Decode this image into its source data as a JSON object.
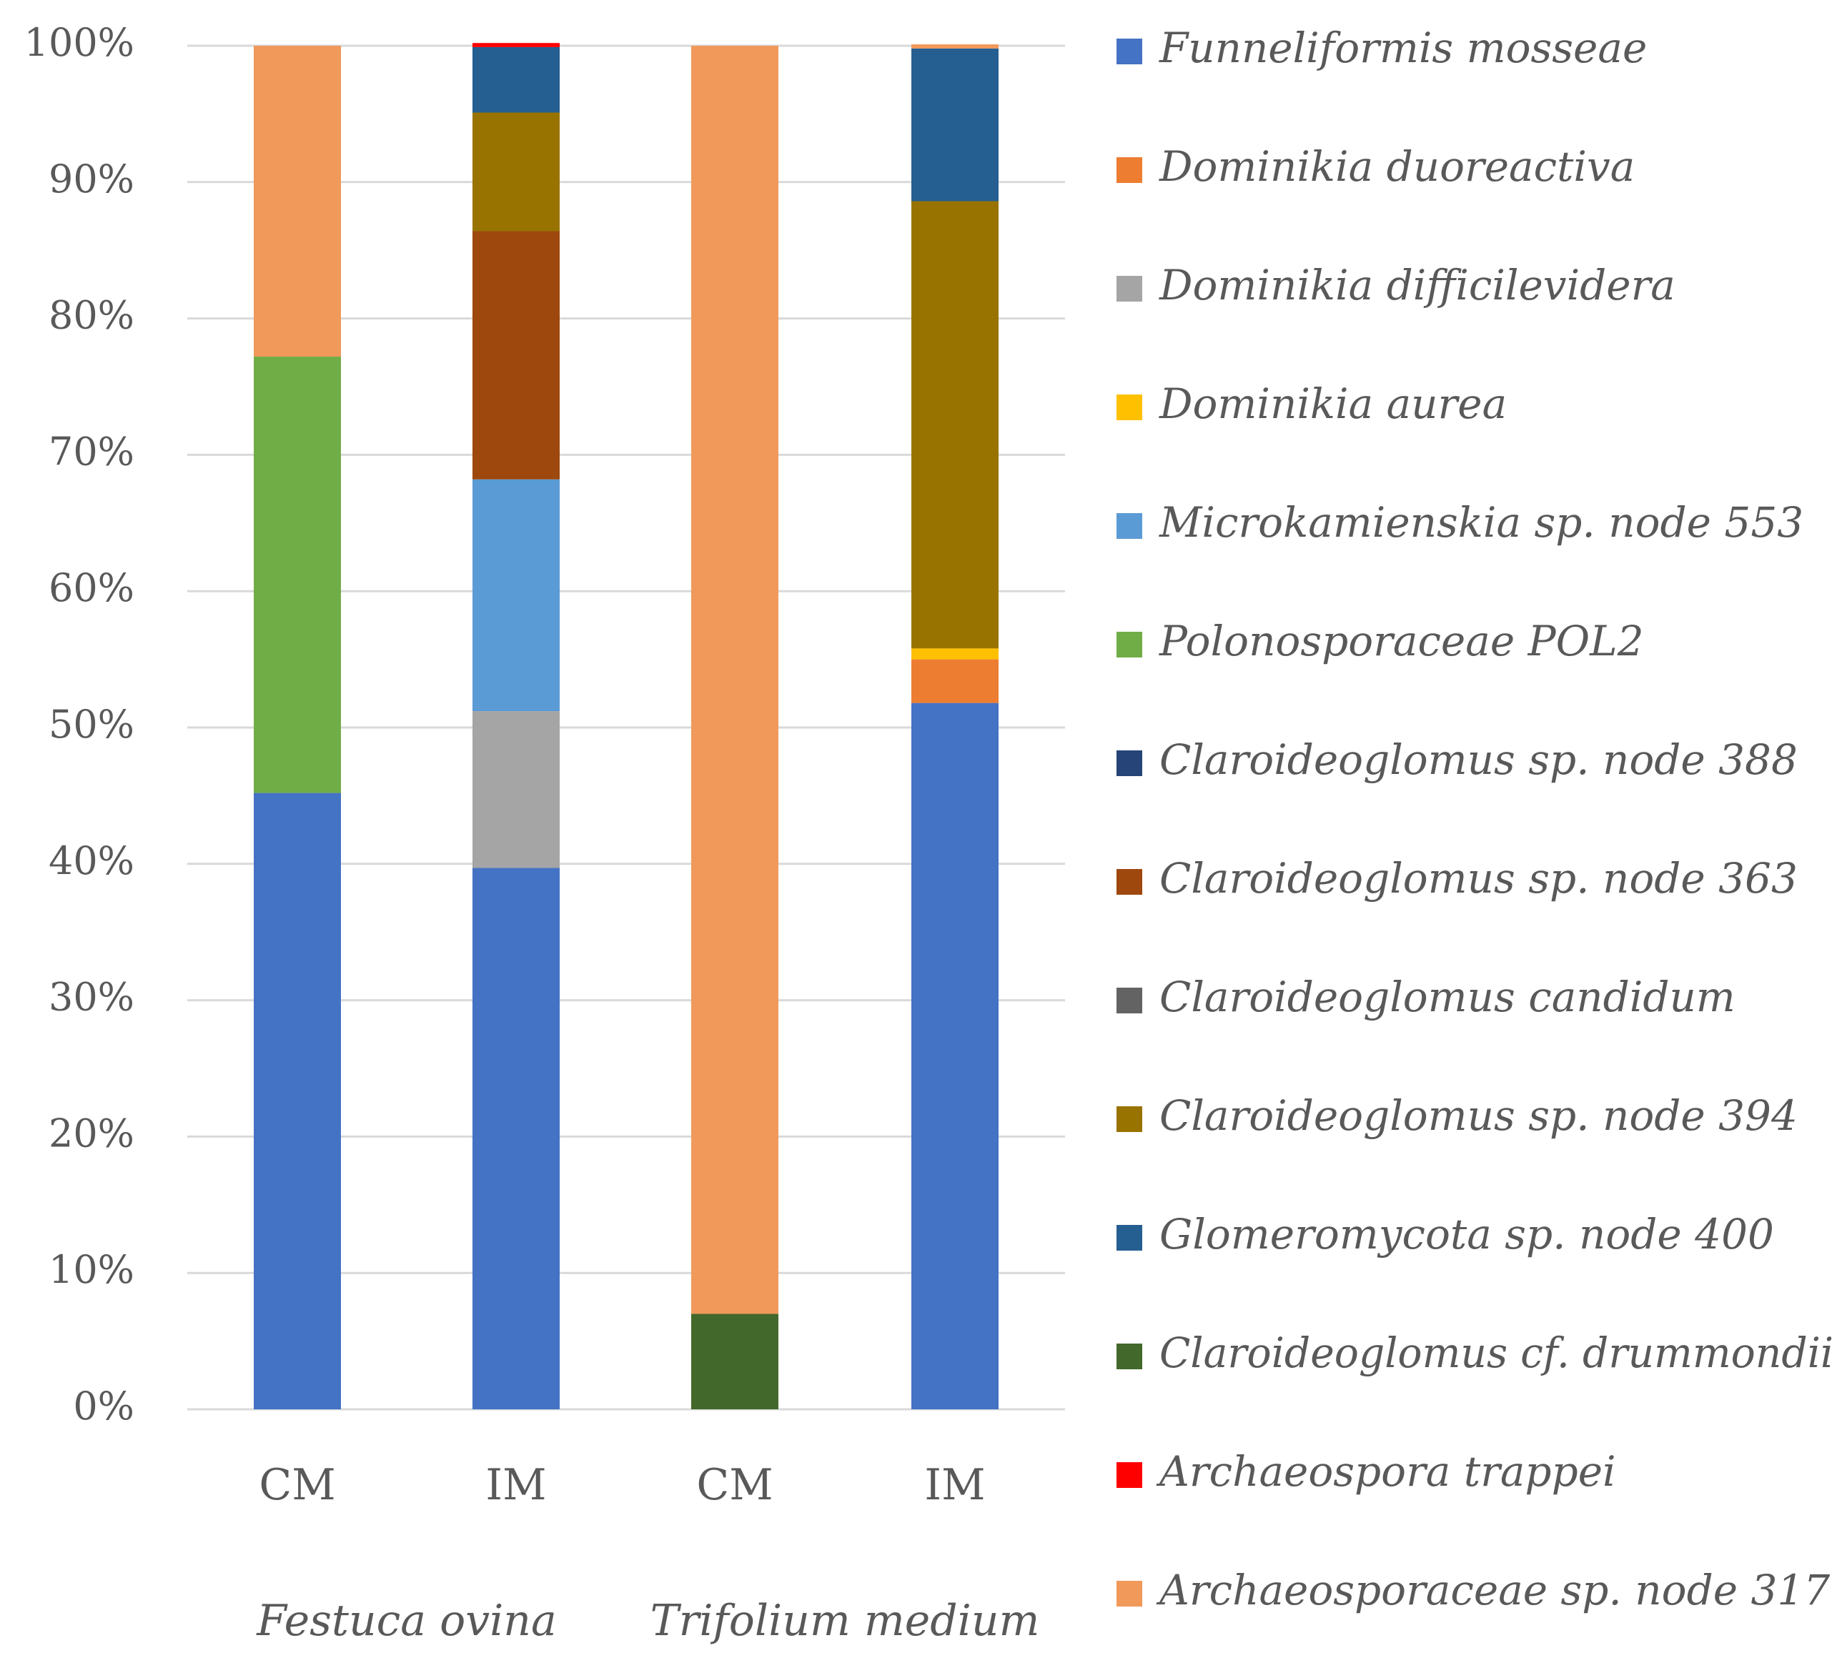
{
  "chart_data": {
    "type": "bar",
    "stacked": true,
    "normalized": true,
    "ylim": [
      0,
      100
    ],
    "ytick_step": 10,
    "ytick_suffix": "%",
    "grid": true,
    "legend_position": "right",
    "categories": [
      "CM",
      "IM",
      "CM",
      "IM"
    ],
    "groups": [
      {
        "label": "Festuca ovina",
        "span": [
          0,
          1
        ]
      },
      {
        "label": "Trifolium medium",
        "span": [
          2,
          3
        ]
      }
    ],
    "series": [
      {
        "name": "Funneliformis mosseae",
        "color": "#4472C4",
        "values": [
          45.2,
          39.7,
          0,
          51.8
        ]
      },
      {
        "name": "Dominikia duoreactiva",
        "color": "#ED7D31",
        "values": [
          0,
          0,
          0,
          3.2
        ]
      },
      {
        "name": "Dominikia difficilevidera",
        "color": "#A5A5A5",
        "values": [
          0,
          11.5,
          0,
          0
        ]
      },
      {
        "name": "Dominikia aurea",
        "color": "#FFC000",
        "values": [
          0,
          0,
          0,
          0.8
        ]
      },
      {
        "name": "Microkamienskia sp. node 553",
        "color": "#5B9BD5",
        "values": [
          0,
          17.0,
          0,
          0
        ]
      },
      {
        "name": "Polonosporaceae POL2",
        "color": "#70AD47",
        "values": [
          32.0,
          0,
          0,
          0
        ]
      },
      {
        "name": "Claroideoglomus sp. node 388",
        "color": "#264478",
        "values": [
          0,
          0,
          0,
          0
        ]
      },
      {
        "name": "Claroideoglomus sp. node 363",
        "color": "#9E480E",
        "values": [
          0,
          18.2,
          0,
          0
        ]
      },
      {
        "name": "Claroideoglomus candidum",
        "color": "#636363",
        "values": [
          0,
          0,
          0,
          0
        ]
      },
      {
        "name": "Claroideoglomus sp. node 394",
        "color": "#997300",
        "values": [
          0,
          8.7,
          0,
          32.8
        ]
      },
      {
        "name": "Glomeromycota sp. node 400",
        "color": "#255E91",
        "values": [
          0,
          4.8,
          0,
          11.2
        ]
      },
      {
        "name": "Claroideoglomus cf. drummondii",
        "color": "#43682B",
        "values": [
          0,
          0,
          7.0,
          0
        ]
      },
      {
        "name": "Archaeospora trappei",
        "color": "#FF0000",
        "values": [
          0,
          0.3,
          0,
          0
        ]
      },
      {
        "name": "Archaeosporaceae sp. node 317",
        "color": "#F0995A",
        "values": [
          22.8,
          0,
          93.0,
          0.3
        ]
      }
    ]
  }
}
